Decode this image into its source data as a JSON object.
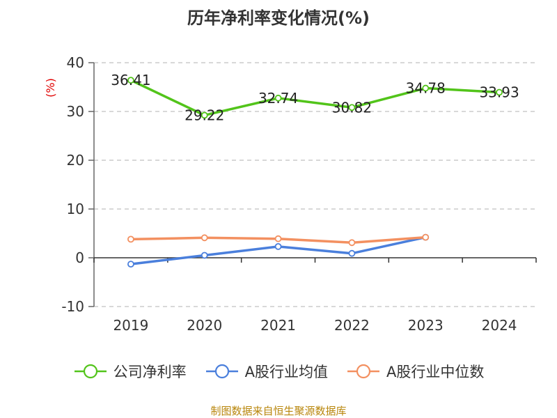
{
  "chart_data": {
    "type": "line",
    "title": "历年净利率变化情况(%)",
    "ylabel": "(%)",
    "xlabel": "",
    "categories": [
      "2019",
      "2020",
      "2021",
      "2022",
      "2023",
      "2024"
    ],
    "ylim": [
      -10,
      40
    ],
    "yticks": [
      -10,
      0,
      10,
      20,
      30,
      40
    ],
    "grid": true,
    "legend_position": "bottom",
    "series": [
      {
        "name": "公司净利率",
        "color": "#52c41a",
        "values": [
          36.41,
          29.22,
          32.74,
          30.82,
          34.78,
          33.93
        ],
        "show_labels": true
      },
      {
        "name": "A股行业均值",
        "color": "#4a7fdc",
        "values": [
          -1.3,
          0.5,
          2.3,
          0.9,
          4.2,
          null
        ],
        "show_labels": false
      },
      {
        "name": "A股行业中位数",
        "color": "#f39060",
        "values": [
          3.8,
          4.1,
          3.9,
          3.1,
          4.2,
          null
        ],
        "show_labels": false
      }
    ]
  },
  "source_note": "制图数据来自恒生聚源数据库"
}
